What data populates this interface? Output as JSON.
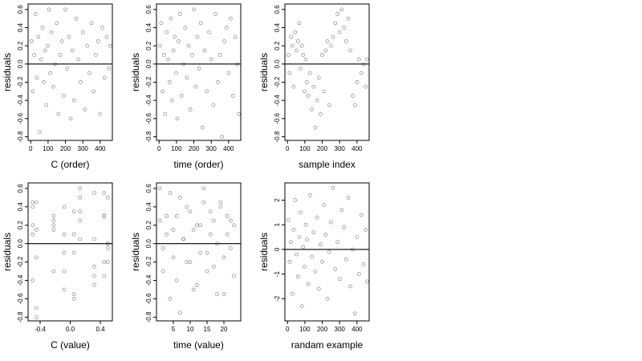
{
  "chart_data": [
    {
      "type": "scatter",
      "xlabel": "C (order)",
      "ylabel": "residuals",
      "hline": 0,
      "xlim": [
        -15,
        470
      ],
      "ylim": [
        -0.84,
        0.66
      ],
      "xticks": [
        0,
        100,
        200,
        300,
        400
      ],
      "yticks": [
        -0.8,
        -0.6,
        -0.4,
        -0.2,
        {
          "value": 0,
          "label": "0.0"
        },
        0.2,
        0.4,
        0.6
      ],
      "x": [
        5,
        12,
        20,
        28,
        35,
        44,
        52,
        60,
        68,
        75,
        83,
        90,
        98,
        105,
        112,
        120,
        130,
        140,
        150,
        160,
        170,
        180,
        190,
        200,
        210,
        220,
        230,
        240,
        250,
        262,
        275,
        288,
        300,
        312,
        325,
        338,
        350,
        362,
        375,
        388,
        400,
        412,
        425,
        438,
        450,
        458
      ],
      "y": [
        0.25,
        -0.3,
        0.1,
        0.55,
        -0.15,
        0.3,
        -0.75,
        0.05,
        0.4,
        -0.2,
        0.15,
        -0.45,
        0.2,
        0.6,
        -0.1,
        0.35,
        -0.25,
        0.0,
        0.45,
        -0.55,
        0.1,
        0.25,
        -0.35,
        0.6,
        -0.05,
        0.3,
        -0.6,
        0.15,
        -0.4,
        0.5,
        0.05,
        -0.2,
        0.35,
        -0.5,
        0.2,
        -0.1,
        0.45,
        -0.3,
        0.1,
        0.25,
        -0.55,
        0.4,
        -0.15,
        0.3,
        -0.05,
        0.2
      ]
    },
    {
      "type": "scatter",
      "xlabel": "time (order)",
      "ylabel": "residuals",
      "hline": 0,
      "xlim": [
        -15,
        470
      ],
      "ylim": [
        -0.84,
        0.66
      ],
      "xticks": [
        0,
        100,
        200,
        300,
        400
      ],
      "yticks": [
        -0.8,
        -0.6,
        -0.4,
        -0.2,
        {
          "value": 0,
          "label": "0.0"
        },
        0.2,
        0.4,
        0.6
      ],
      "x": [
        5,
        12,
        20,
        28,
        35,
        44,
        52,
        60,
        68,
        75,
        83,
        90,
        98,
        105,
        112,
        120,
        130,
        140,
        150,
        160,
        170,
        180,
        190,
        200,
        210,
        220,
        230,
        240,
        250,
        262,
        275,
        288,
        300,
        312,
        325,
        338,
        350,
        362,
        375,
        388,
        400,
        412,
        425,
        438,
        450,
        458
      ],
      "y": [
        0.2,
        0.45,
        -0.3,
        0.1,
        -0.55,
        0.35,
        0.05,
        -0.2,
        0.5,
        -0.4,
        0.15,
        0.3,
        -0.1,
        -0.6,
        0.25,
        0.55,
        -0.35,
        0.0,
        0.4,
        -0.15,
        0.2,
        -0.5,
        0.1,
        0.6,
        -0.25,
        0.3,
        -0.05,
        0.45,
        -0.7,
        0.15,
        -0.3,
        0.35,
        0.05,
        -0.45,
        0.55,
        -0.2,
        0.1,
        -0.8,
        0.25,
        0.4,
        -0.1,
        0.5,
        -0.35,
        0.3,
        0.0,
        -0.55
      ]
    },
    {
      "type": "scatter",
      "xlabel": "sample index",
      "ylabel": "residuals",
      "hline": 0,
      "xlim": [
        -15,
        470
      ],
      "ylim": [
        -0.84,
        0.66
      ],
      "xticks": [
        0,
        100,
        200,
        300,
        400
      ],
      "yticks": [
        -0.8,
        -0.6,
        -0.4,
        -0.2,
        {
          "value": 0,
          "label": "0.0"
        },
        0.2,
        0.4,
        0.6
      ],
      "x": [
        5,
        12,
        20,
        28,
        35,
        44,
        52,
        60,
        68,
        75,
        83,
        90,
        98,
        105,
        112,
        120,
        130,
        140,
        150,
        160,
        170,
        180,
        190,
        200,
        210,
        220,
        230,
        240,
        250,
        262,
        275,
        288,
        300,
        312,
        325,
        338,
        350,
        362,
        375,
        388,
        400,
        412,
        425,
        438,
        450,
        458
      ],
      "y": [
        0.1,
        -0.1,
        0.3,
        0.2,
        -0.25,
        0.35,
        0.15,
        0.25,
        0.45,
        -0.05,
        0.2,
        0.1,
        -0.3,
        0.05,
        -0.2,
        -0.35,
        -0.1,
        -0.5,
        -0.25,
        -0.7,
        -0.4,
        -0.15,
        -0.55,
        0.1,
        -0.3,
        0.15,
        0.25,
        -0.45,
        0.2,
        0.3,
        0.45,
        0.55,
        0.35,
        0.6,
        0.4,
        0.25,
        0.5,
        0.15,
        -0.35,
        -0.45,
        -0.2,
        0.05,
        -0.1,
        0.0,
        -0.25,
        0.05
      ]
    },
    {
      "type": "scatter",
      "xlabel": "C (value)",
      "ylabel": "residuals",
      "hline": 0,
      "xlim": [
        -0.56,
        0.56
      ],
      "ylim": [
        -0.84,
        0.66
      ],
      "xticks": [
        -0.4,
        {
          "value": 0,
          "label": "0.0"
        },
        0.4
      ],
      "yticks": [
        -0.8,
        -0.6,
        -0.4,
        -0.2,
        {
          "value": 0,
          "label": "0.0"
        },
        0.2,
        0.4,
        0.6
      ],
      "x": [
        -0.5,
        -0.45,
        -0.22,
        -0.08,
        0.05,
        0.13,
        0.32,
        0.45,
        0.5,
        -0.5,
        -0.45,
        -0.22,
        -0.08,
        0.05,
        0.13,
        0.32,
        0.45,
        0.5,
        -0.5,
        -0.45,
        -0.22,
        -0.08,
        0.05,
        0.13,
        0.32,
        0.45,
        0.5,
        -0.5,
        -0.45,
        -0.22,
        -0.08,
        0.05,
        0.13,
        0.32,
        0.45,
        0.5,
        -0.5,
        -0.45,
        -0.22,
        -0.08,
        0.05,
        0.13,
        0.32,
        0.45,
        0.5
      ],
      "y": [
        0.2,
        0.45,
        -0.3,
        0.1,
        -0.55,
        0.35,
        0.05,
        -0.2,
        0.5,
        -0.4,
        0.15,
        0.3,
        -0.1,
        -0.6,
        0.25,
        0.55,
        -0.35,
        0.0,
        0.4,
        -0.15,
        0.2,
        -0.5,
        0.1,
        0.6,
        -0.25,
        0.3,
        -0.05,
        0.45,
        -0.7,
        0.15,
        -0.3,
        0.35,
        0.05,
        -0.45,
        0.55,
        -0.2,
        0.1,
        -0.8,
        0.25,
        0.4,
        -0.1,
        0.5,
        -0.35,
        0.3,
        0.0
      ]
    },
    {
      "type": "scatter",
      "xlabel": "time (value)",
      "ylabel": "residuals",
      "hline": 0,
      "xlim": [
        0,
        25
      ],
      "ylim": [
        -0.84,
        0.66
      ],
      "xticks": [
        5,
        10,
        15,
        20
      ],
      "yticks": [
        -0.8,
        -0.6,
        -0.4,
        -0.2,
        {
          "value": 0,
          "label": "0.0"
        },
        0.2,
        0.4,
        0.6
      ],
      "x": [
        1,
        2,
        3,
        4,
        5,
        6,
        7,
        8,
        9,
        10,
        11,
        12,
        13,
        14,
        15,
        16,
        17,
        18,
        19,
        20,
        21,
        22,
        23,
        1,
        2,
        3,
        4,
        5,
        6,
        7,
        8,
        9,
        10,
        11,
        12,
        13,
        14,
        15,
        16,
        17,
        18,
        19,
        20,
        21,
        22,
        23
      ],
      "y": [
        0.25,
        -0.3,
        0.1,
        0.55,
        -0.15,
        0.3,
        -0.75,
        0.05,
        0.4,
        -0.2,
        0.15,
        -0.45,
        0.2,
        0.6,
        -0.1,
        0.35,
        -0.25,
        0.0,
        0.45,
        -0.55,
        0.1,
        0.25,
        -0.35,
        0.6,
        -0.05,
        0.3,
        -0.6,
        0.15,
        -0.4,
        0.5,
        0.05,
        -0.2,
        0.35,
        -0.5,
        0.2,
        -0.1,
        0.45,
        -0.3,
        0.1,
        0.25,
        -0.55,
        0.4,
        -0.15,
        0.3,
        -0.05,
        0.2
      ]
    },
    {
      "type": "scatter",
      "xlabel": "randam example",
      "ylabel": "residuals",
      "hline": 0,
      "xlim": [
        -15,
        470
      ],
      "ylim": [
        -2.9,
        2.7
      ],
      "xticks": [
        0,
        100,
        200,
        300,
        400
      ],
      "yticks": [
        -2,
        -1,
        0,
        1,
        2
      ],
      "x": [
        5,
        12,
        20,
        28,
        35,
        44,
        52,
        60,
        68,
        75,
        83,
        90,
        98,
        105,
        112,
        120,
        130,
        140,
        150,
        160,
        170,
        180,
        190,
        200,
        210,
        220,
        230,
        240,
        250,
        262,
        275,
        288,
        300,
        312,
        325,
        338,
        350,
        362,
        375,
        388,
        400,
        412,
        425,
        438,
        450,
        458
      ],
      "y": [
        1.2,
        -0.5,
        0.3,
        -1.8,
        0.8,
        2.0,
        -0.2,
        -1.1,
        0.5,
        1.5,
        -2.3,
        0.1,
        -0.7,
        1.0,
        0.4,
        -1.4,
        2.2,
        -0.3,
        0.7,
        -0.9,
        1.3,
        -1.6,
        0.2,
        -0.5,
        1.8,
        0.6,
        -2.0,
        -0.1,
        1.1,
        2.5,
        -0.8,
        0.3,
        -1.2,
        1.6,
        0.9,
        -0.4,
        2.1,
        -1.5,
        0.0,
        -2.6,
        0.5,
        -1.0,
        1.4,
        -0.6,
        0.8,
        -1.3
      ]
    }
  ]
}
